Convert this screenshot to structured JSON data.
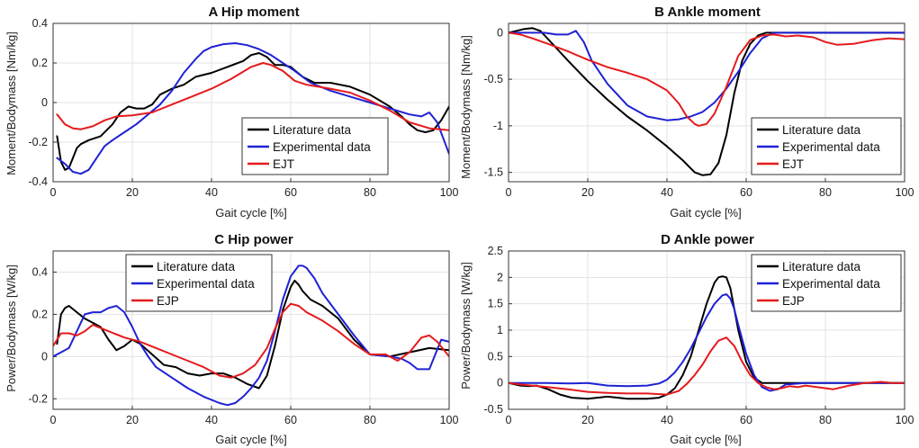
{
  "chart_data": [
    {
      "type": "line",
      "panel": "A",
      "title": "Hip moment",
      "xlabel": "Gait cycle [%]",
      "ylabel": "Moment/Bodymass [Nm/kg]",
      "xlim": [
        0,
        100
      ],
      "ylim": [
        -0.4,
        0.4
      ],
      "xticks": [
        0,
        20,
        40,
        60,
        80,
        100
      ],
      "yticks": [
        -0.4,
        -0.2,
        0,
        0.2,
        0.4
      ],
      "ytick_labels": [
        "-0.4",
        "-0.2",
        "0",
        "0.2",
        "0.4"
      ],
      "grid": true,
      "legend_position": "bottom-right",
      "series": [
        {
          "name": "Literature data",
          "color": "#000000",
          "x": [
            1,
            2,
            3,
            4,
            5,
            6,
            7,
            9,
            12,
            15,
            17,
            19,
            21,
            23,
            25,
            27,
            30,
            33,
            36,
            40,
            44,
            48,
            50,
            52,
            54,
            56,
            58,
            60,
            63,
            66,
            70,
            75,
            80,
            85,
            88,
            90,
            92,
            94,
            96,
            98,
            100
          ],
          "y": [
            -0.17,
            -0.3,
            -0.34,
            -0.33,
            -0.28,
            -0.23,
            -0.21,
            -0.19,
            -0.17,
            -0.11,
            -0.05,
            -0.02,
            -0.03,
            -0.03,
            -0.01,
            0.04,
            0.07,
            0.09,
            0.13,
            0.15,
            0.18,
            0.21,
            0.24,
            0.25,
            0.23,
            0.19,
            0.19,
            0.18,
            0.13,
            0.1,
            0.1,
            0.08,
            0.04,
            -0.02,
            -0.07,
            -0.11,
            -0.14,
            -0.15,
            -0.14,
            -0.09,
            -0.02
          ]
        },
        {
          "name": "Experimental data",
          "color": "#1f22d4",
          "x": [
            1,
            3,
            5,
            7,
            9,
            11,
            13,
            15,
            18,
            21,
            24,
            27,
            30,
            33,
            36,
            38,
            40,
            43,
            46,
            49,
            52,
            55,
            58,
            61,
            65,
            70,
            75,
            80,
            85,
            90,
            93,
            95,
            97,
            100
          ],
          "y": [
            -0.28,
            -0.31,
            -0.35,
            -0.36,
            -0.34,
            -0.28,
            -0.22,
            -0.19,
            -0.15,
            -0.11,
            -0.06,
            -0.01,
            0.06,
            0.15,
            0.22,
            0.26,
            0.28,
            0.295,
            0.3,
            0.29,
            0.27,
            0.24,
            0.2,
            0.16,
            0.1,
            0.06,
            0.03,
            0,
            -0.03,
            -0.06,
            -0.07,
            -0.05,
            -0.1,
            -0.26
          ]
        },
        {
          "name": "EJT",
          "color": "#e41a1c",
          "x": [
            1,
            3,
            5,
            7,
            10,
            13,
            16,
            20,
            25,
            30,
            35,
            40,
            45,
            50,
            53,
            55,
            58,
            61,
            64,
            70,
            75,
            80,
            85,
            90,
            95,
            100
          ],
          "y": [
            -0.06,
            -0.11,
            -0.13,
            -0.135,
            -0.12,
            -0.09,
            -0.07,
            -0.065,
            -0.05,
            -0.01,
            0.03,
            0.07,
            0.12,
            0.18,
            0.2,
            0.19,
            0.16,
            0.11,
            0.09,
            0.07,
            0.05,
            0.01,
            -0.04,
            -0.1,
            -0.13,
            -0.14
          ]
        }
      ]
    },
    {
      "type": "line",
      "panel": "B",
      "title": "Ankle moment",
      "xlabel": "Gait cycle [%]",
      "ylabel": "Moment/Bodymass [Nm/kg]",
      "xlim": [
        0,
        100
      ],
      "ylim": [
        -1.6,
        0.1
      ],
      "xticks": [
        0,
        20,
        40,
        60,
        80,
        100
      ],
      "yticks": [
        -1.5,
        -1,
        -0.5,
        0
      ],
      "ytick_labels": [
        "-1.5",
        "-1",
        "-0.5",
        "0"
      ],
      "grid": true,
      "legend_position": "bottom-right",
      "series": [
        {
          "name": "Literature data",
          "color": "#000000",
          "x": [
            0,
            2,
            4,
            6,
            8,
            10,
            15,
            20,
            25,
            30,
            35,
            40,
            44,
            47,
            49,
            51,
            53,
            55,
            57,
            59,
            61,
            63,
            65,
            70,
            80,
            90,
            100
          ],
          "y": [
            0,
            0.02,
            0.04,
            0.05,
            0.02,
            -0.07,
            -0.3,
            -0.52,
            -0.72,
            -0.9,
            -1.05,
            -1.22,
            -1.37,
            -1.5,
            -1.53,
            -1.52,
            -1.4,
            -1.1,
            -0.65,
            -0.3,
            -0.12,
            -0.03,
            0,
            0,
            0,
            0,
            0
          ]
        },
        {
          "name": "Experimental data",
          "color": "#1f22d4",
          "x": [
            0,
            3,
            6,
            9,
            12,
            15,
            17,
            19,
            21,
            25,
            30,
            35,
            40,
            43,
            46,
            49,
            52,
            55,
            58,
            61,
            64,
            67,
            70,
            80,
            90,
            100
          ],
          "y": [
            0,
            0,
            0,
            0,
            -0.02,
            -0.02,
            0.02,
            -0.1,
            -0.3,
            -0.55,
            -0.78,
            -0.9,
            -0.94,
            -0.93,
            -0.9,
            -0.85,
            -0.75,
            -0.6,
            -0.42,
            -0.22,
            -0.06,
            0,
            0,
            0,
            0,
            0
          ]
        },
        {
          "name": "EJT",
          "color": "#e41a1c",
          "x": [
            0,
            3,
            6,
            10,
            15,
            20,
            25,
            30,
            35,
            40,
            43,
            45,
            47,
            48,
            50,
            52,
            55,
            58,
            61,
            64,
            67,
            70,
            73,
            77,
            80,
            83,
            87,
            92,
            96,
            100
          ],
          "y": [
            0,
            -0.02,
            -0.06,
            -0.12,
            -0.2,
            -0.29,
            -0.37,
            -0.43,
            -0.5,
            -0.62,
            -0.76,
            -0.9,
            -0.98,
            -1,
            -0.98,
            -0.87,
            -0.58,
            -0.25,
            -0.08,
            -0.03,
            -0.02,
            -0.04,
            -0.03,
            -0.05,
            -0.1,
            -0.13,
            -0.12,
            -0.08,
            -0.06,
            -0.07
          ]
        }
      ]
    },
    {
      "type": "line",
      "panel": "C",
      "title": "Hip power",
      "xlabel": "Gait cycle [%]",
      "ylabel": "Power/Bodymass [W/kg]",
      "xlim": [
        0,
        100
      ],
      "ylim": [
        -0.25,
        0.5
      ],
      "xticks": [
        0,
        20,
        40,
        60,
        80,
        100
      ],
      "yticks": [
        -0.2,
        0,
        0.2,
        0.4
      ],
      "ytick_labels": [
        "-0.2",
        "0",
        "0.2",
        "0.4"
      ],
      "grid": true,
      "legend_position": "top-left",
      "series": [
        {
          "name": "Literature data",
          "color": "#000000",
          "x": [
            1,
            2,
            3,
            4,
            6,
            8,
            10,
            12,
            14,
            16,
            18,
            20,
            22,
            25,
            28,
            31,
            34,
            37,
            40,
            43,
            46,
            49,
            52,
            54,
            56,
            58,
            60,
            61,
            62,
            63,
            65,
            68,
            72,
            76,
            80,
            85,
            90,
            95,
            100
          ],
          "y": [
            0.06,
            0.2,
            0.23,
            0.24,
            0.21,
            0.18,
            0.16,
            0.14,
            0.08,
            0.03,
            0.05,
            0.08,
            0.06,
            0.01,
            -0.04,
            -0.05,
            -0.08,
            -0.09,
            -0.08,
            -0.08,
            -0.1,
            -0.13,
            -0.15,
            -0.09,
            0.05,
            0.22,
            0.33,
            0.36,
            0.34,
            0.31,
            0.27,
            0.24,
            0.18,
            0.08,
            0.01,
            0,
            0.02,
            0.04,
            0.03
          ]
        },
        {
          "name": "Experimental data",
          "color": "#1f22d4",
          "x": [
            0,
            2,
            4,
            6,
            8,
            10,
            12,
            14,
            16,
            18,
            20,
            22,
            24,
            26,
            30,
            34,
            38,
            42,
            44,
            46,
            48,
            50,
            52,
            54,
            56,
            58,
            60,
            62,
            63,
            64,
            66,
            68,
            72,
            76,
            80,
            85,
            88,
            90,
            92,
            95,
            98,
            100
          ],
          "y": [
            0,
            0.02,
            0.04,
            0.12,
            0.2,
            0.21,
            0.21,
            0.23,
            0.24,
            0.21,
            0.14,
            0.06,
            0,
            -0.05,
            -0.1,
            -0.15,
            -0.19,
            -0.22,
            -0.23,
            -0.22,
            -0.19,
            -0.15,
            -0.1,
            -0.02,
            0.12,
            0.27,
            0.38,
            0.43,
            0.43,
            0.42,
            0.37,
            0.3,
            0.2,
            0.1,
            0.01,
            0,
            -0.01,
            -0.03,
            -0.06,
            -0.06,
            0.08,
            0.07
          ]
        },
        {
          "name": "EJP",
          "color": "#e41a1c",
          "x": [
            0,
            2,
            4,
            6,
            8,
            10,
            14,
            18,
            22,
            26,
            30,
            34,
            38,
            42,
            45,
            48,
            51,
            54,
            56,
            58,
            60,
            62,
            64,
            68,
            72,
            76,
            80,
            84,
            87,
            90,
            93,
            95,
            97,
            100
          ],
          "y": [
            0.05,
            0.11,
            0.11,
            0.1,
            0.12,
            0.15,
            0.12,
            0.09,
            0.07,
            0.04,
            0.01,
            -0.02,
            -0.05,
            -0.09,
            -0.1,
            -0.08,
            -0.04,
            0.04,
            0.13,
            0.21,
            0.25,
            0.24,
            0.21,
            0.17,
            0.12,
            0.06,
            0.01,
            0.01,
            -0.02,
            0.02,
            0.09,
            0.1,
            0.07,
            0
          ]
        }
      ]
    },
    {
      "type": "line",
      "panel": "D",
      "title": "Ankle power",
      "xlabel": "Gait cycle [%]",
      "ylabel": "Power/Bodymass [W/kg]",
      "xlim": [
        0,
        100
      ],
      "ylim": [
        -0.5,
        2.5
      ],
      "xticks": [
        0,
        20,
        40,
        60,
        80,
        100
      ],
      "yticks": [
        -0.5,
        0,
        0.5,
        1,
        1.5,
        2,
        2.5
      ],
      "ytick_labels": [
        "-0.5",
        "0",
        "0.5",
        "1",
        "1.5",
        "2",
        "2.5"
      ],
      "grid": true,
      "legend_position": "top-right",
      "series": [
        {
          "name": "Literature data",
          "color": "#000000",
          "x": [
            0,
            3,
            5,
            7,
            10,
            13,
            16,
            20,
            25,
            30,
            35,
            38,
            40,
            42,
            44,
            46,
            48,
            50,
            52,
            53,
            54,
            55,
            56,
            57,
            58,
            60,
            62,
            64,
            66,
            70,
            80,
            90,
            100
          ],
          "y": [
            0,
            -0.05,
            -0.06,
            -0.05,
            -0.12,
            -0.22,
            -0.28,
            -0.3,
            -0.26,
            -0.3,
            -0.3,
            -0.28,
            -0.22,
            -0.1,
            0.15,
            0.5,
            1,
            1.5,
            1.9,
            2,
            2.02,
            2,
            1.8,
            1.4,
            1,
            0.4,
            0.1,
            0,
            0,
            0,
            0,
            0,
            0
          ]
        },
        {
          "name": "Experimental data",
          "color": "#1f22d4",
          "x": [
            0,
            5,
            10,
            15,
            20,
            25,
            30,
            35,
            38,
            40,
            42,
            44,
            46,
            48,
            50,
            52,
            54,
            55,
            56,
            57,
            58,
            60,
            62,
            64,
            66,
            68,
            70,
            75,
            80,
            90,
            100
          ],
          "y": [
            0,
            0,
            0,
            -0.01,
            0,
            -0.05,
            -0.06,
            -0.05,
            -0.01,
            0.06,
            0.2,
            0.4,
            0.65,
            0.95,
            1.25,
            1.5,
            1.66,
            1.68,
            1.6,
            1.4,
            1.1,
            0.55,
            0.15,
            -0.08,
            -0.15,
            -0.12,
            -0.03,
            0,
            0,
            0,
            0
          ]
        },
        {
          "name": "EJP",
          "color": "#e41a1c",
          "x": [
            0,
            3,
            6,
            10,
            15,
            20,
            25,
            30,
            35,
            40,
            43,
            45,
            47,
            49,
            51,
            53,
            55,
            57,
            59,
            61,
            63,
            65,
            67,
            69,
            71,
            73,
            75,
            78,
            82,
            86,
            90,
            94,
            97,
            100
          ],
          "y": [
            0,
            -0.03,
            -0.05,
            -0.08,
            -0.12,
            -0.17,
            -0.19,
            -0.2,
            -0.2,
            -0.22,
            -0.15,
            -0.02,
            0.15,
            0.35,
            0.6,
            0.8,
            0.86,
            0.7,
            0.4,
            0.15,
            0,
            -0.08,
            -0.12,
            -0.1,
            -0.06,
            -0.08,
            -0.05,
            -0.08,
            -0.12,
            -0.05,
            0,
            0.02,
            0,
            0
          ]
        }
      ]
    }
  ]
}
